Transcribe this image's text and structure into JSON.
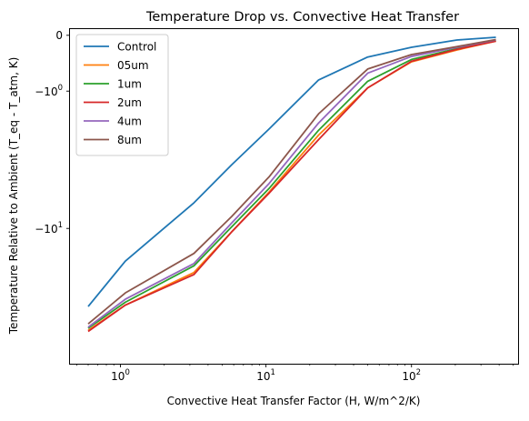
{
  "chart_data": {
    "type": "line",
    "title": "Temperature Drop vs. Convective Heat Transfer",
    "xlabel": "Convective Heat Transfer Factor (H, W/m^2/K)",
    "ylabel": "Temperature Relative to Ambient (T_eq - T_atm, K)",
    "xscale": "log",
    "yscale": "symlog",
    "xlim": [
      0.45,
      540
    ],
    "ylim": [
      -58,
      0.08
    ],
    "x": [
      0.6,
      1.08,
      3.2,
      5.8,
      10.5,
      23,
      50,
      100,
      205,
      380
    ],
    "xticks": [
      {
        "value": 1,
        "label": "10^0"
      },
      {
        "value": 10,
        "label": "10^1"
      },
      {
        "value": 100,
        "label": "10^2"
      }
    ],
    "yticks": [
      {
        "value": 0,
        "label": "0"
      },
      {
        "value": -1,
        "label": "−10^0"
      },
      {
        "value": -10,
        "label": "−10^1"
      }
    ],
    "legend": "top-left",
    "grid": false,
    "series": [
      {
        "name": "Control",
        "color": "#1f77b4",
        "values": [
          -28,
          -15.5,
          -7,
          -4,
          -2.2,
          -0.74,
          -0.31,
          -0.16,
          -0.06,
          -0.025
        ]
      },
      {
        "name": "05um",
        "color": "#ff7f0e",
        "values": [
          -38,
          -27.5,
          -18,
          -10.5,
          -6,
          -2.45,
          -0.92,
          -0.39,
          -0.2,
          -0.075
        ]
      },
      {
        "name": "1um",
        "color": "#2ca02c",
        "values": [
          -37,
          -26.5,
          -16.5,
          -9.8,
          -5.7,
          -2.25,
          -0.77,
          -0.35,
          -0.18,
          -0.07
        ]
      },
      {
        "name": "2um",
        "color": "#d62728",
        "values": [
          -38.5,
          -27.5,
          -18.5,
          -10.5,
          -6.1,
          -2.65,
          -0.92,
          -0.38,
          -0.19,
          -0.075
        ]
      },
      {
        "name": "4um",
        "color": "#9467bd",
        "values": [
          -36.5,
          -25.5,
          -16,
          -9.3,
          -5.3,
          -1.97,
          -0.6,
          -0.3,
          -0.16,
          -0.06
        ]
      },
      {
        "name": "8um",
        "color": "#8c564b",
        "values": [
          -35,
          -23.5,
          -14,
          -8.5,
          -4.8,
          -1.65,
          -0.52,
          -0.27,
          -0.15,
          -0.055
        ]
      }
    ]
  }
}
